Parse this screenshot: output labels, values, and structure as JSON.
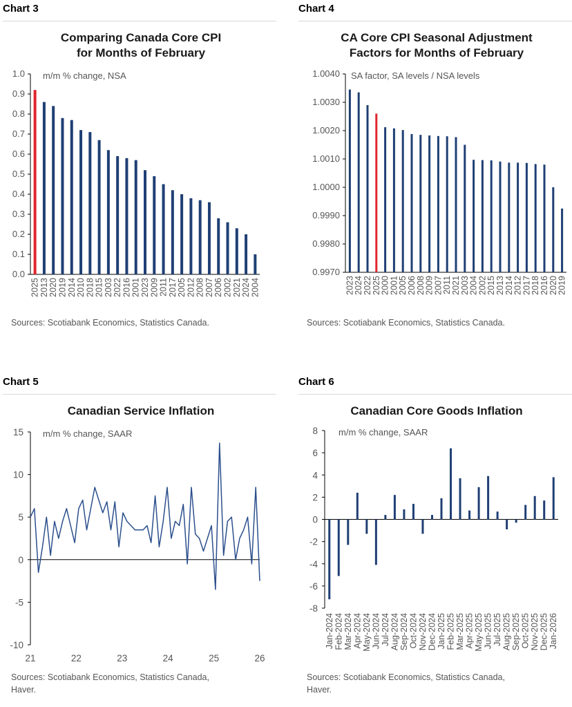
{
  "colors": {
    "bar": "#1f3f74",
    "highlight": "#e0262f",
    "line": "#2b4f8c",
    "axis": "#000000",
    "text": "#555555"
  },
  "chart_data": [
    {
      "panel_label": "Chart 3",
      "type": "bar",
      "title_lines": [
        "Comparing Canada Core CPI",
        "for Months of February"
      ],
      "subtitle": "m/m % change, NSA",
      "categories": [
        "2025",
        "2013",
        "2020",
        "2019",
        "2014",
        "2010",
        "2018",
        "2015",
        "2003",
        "2022",
        "2016",
        "2001",
        "2023",
        "2009",
        "2011",
        "2017",
        "2005",
        "2012",
        "2008",
        "2007",
        "2006",
        "2002",
        "2021",
        "2024",
        "2004"
      ],
      "values": [
        0.92,
        0.86,
        0.84,
        0.78,
        0.77,
        0.72,
        0.71,
        0.67,
        0.62,
        0.59,
        0.58,
        0.57,
        0.52,
        0.49,
        0.45,
        0.42,
        0.4,
        0.38,
        0.37,
        0.36,
        0.28,
        0.26,
        0.23,
        0.2,
        0.1
      ],
      "highlight_index": 0,
      "yticks": [
        "1.0",
        "0.9",
        "0.8",
        "0.7",
        "0.6",
        "0.5",
        "0.4",
        "0.3",
        "0.2",
        "0.1",
        "0.0"
      ],
      "ylim": [
        0.0,
        1.0
      ],
      "source": "Sources: Scotiabank Economics, Statistics Canada."
    },
    {
      "panel_label": "Chart 4",
      "type": "bar",
      "title_lines": [
        "CA Core CPI Seasonal Adjustment",
        "Factors for Months of February"
      ],
      "subtitle": "SA factor, SA levels / NSA levels",
      "categories": [
        "2023",
        "2024",
        "2022",
        "2025",
        "2000",
        "2001",
        "2005",
        "2006",
        "2008",
        "2009",
        "2007",
        "2011",
        "2021",
        "2003",
        "2004",
        "2002",
        "2015",
        "2013",
        "2014",
        "2012",
        "2017",
        "2018",
        "2016",
        "2020",
        "2019"
      ],
      "values": [
        1.00345,
        1.00335,
        1.0029,
        1.0026,
        1.00212,
        1.00208,
        1.00202,
        1.00188,
        1.00185,
        1.00183,
        1.00181,
        1.0018,
        1.00177,
        1.0015,
        1.00097,
        1.00096,
        1.00095,
        1.00091,
        1.00087,
        1.00087,
        1.00086,
        1.00082,
        1.0008,
        1.0,
        0.99925
      ],
      "extra_values": [
        0.99925
      ],
      "highlight_index": 3,
      "yticks": [
        "1.0040",
        "1.0030",
        "1.0020",
        "1.0010",
        "1.0000",
        "0.9990",
        "0.9980",
        "0.9970"
      ],
      "ylim": [
        0.997,
        1.004
      ],
      "source": "Sources: Scotiabank Economics, Statistics Canada."
    },
    {
      "panel_label": "Chart 5",
      "type": "line",
      "title": "Canadian Service Inflation",
      "subtitle": "m/m % change, SAAR",
      "x_labels": [
        "21",
        "22",
        "23",
        "24",
        "25",
        "26"
      ],
      "values": [
        5.0,
        6.0,
        -1.5,
        1.5,
        5.0,
        0.5,
        4.5,
        2.5,
        4.5,
        6.0,
        4.0,
        2.0,
        6.0,
        7.0,
        3.5,
        6.0,
        8.5,
        7.0,
        5.5,
        6.8,
        3.5,
        6.8,
        1.5,
        5.5,
        4.5,
        4.0,
        3.5,
        3.5,
        3.5,
        4.0,
        2.0,
        7.5,
        1.5,
        4.5,
        8.5,
        2.5,
        4.5,
        4.0,
        6.5,
        -0.5,
        8.5,
        3.0,
        2.5,
        1.0,
        2.5,
        4.0,
        -3.5,
        13.7,
        0.5,
        4.5,
        5.0,
        0.0,
        2.5,
        3.5,
        5.0,
        -0.5,
        8.5,
        -2.5
      ],
      "yticks": [
        "15",
        "10",
        "5",
        "0",
        "-5",
        "-10"
      ],
      "ylim": [
        -10,
        15
      ],
      "source_lines": [
        "Sources: Scotiabank Economics, Statistics Canada,",
        "Haver."
      ]
    },
    {
      "panel_label": "Chart 6",
      "type": "bar",
      "title": "Canadian Core Goods Inflation",
      "subtitle": "m/m % change, SAAR",
      "categories": [
        "Jan-2024",
        "Feb-2024",
        "Mar-2024",
        "Apr-2024",
        "May-2024",
        "Jun-2024",
        "Jul-2024",
        "Aug-2024",
        "Sep-2024",
        "Oct-2024",
        "Nov-2024",
        "Dec-2024",
        "Jan-2025",
        "Feb-2025",
        "Mar-2025",
        "Apr-2025",
        "May-2025",
        "Jun-2025",
        "Jul-2025",
        "Aug-2025",
        "Sep-2025",
        "Oct-2025",
        "Nov-2025",
        "Dec-2025",
        "Jan-2026"
      ],
      "values": [
        -7.2,
        -5.1,
        -2.3,
        2.4,
        -1.3,
        -4.1,
        0.4,
        2.2,
        0.9,
        1.4,
        -1.3,
        0.4,
        1.9,
        6.4,
        3.7,
        0.8,
        2.9,
        3.9,
        0.7,
        -0.9,
        -0.3,
        1.3,
        2.1,
        1.7,
        3.8
      ],
      "yticks": [
        "8",
        "6",
        "4",
        "2",
        "0",
        "-2",
        "-4",
        "-6",
        "-8"
      ],
      "ylim": [
        -8,
        8
      ],
      "source_lines": [
        "Sources: Scotiabank Economics, Statistics Canada,",
        "Haver."
      ]
    }
  ]
}
